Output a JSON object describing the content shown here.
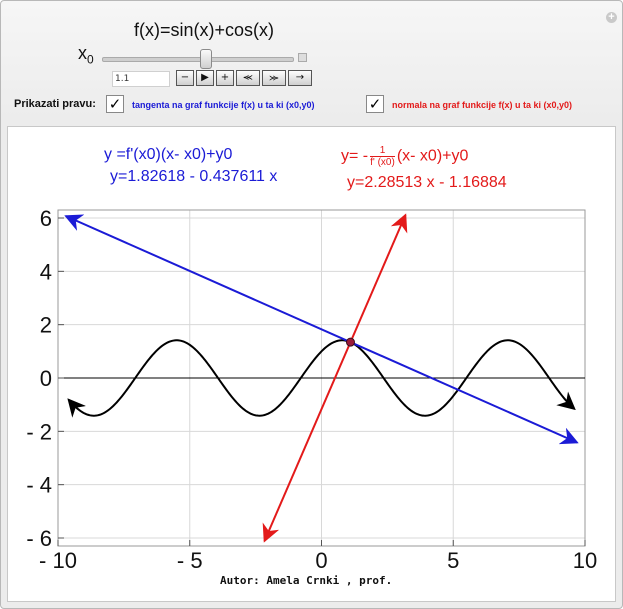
{
  "title": "f(x)=sin(x)+cos(x)",
  "slider": {
    "label": "x",
    "label_sub": "0",
    "value_display": "1.1"
  },
  "animation_controls": [
    "−",
    "▶",
    "+",
    "⪻",
    "⪼",
    "→"
  ],
  "controls": {
    "show_label": "Prikazati pravu:",
    "tangent": {
      "checked": true,
      "label": "tangenta na graf funkcije f(x) u ta  ki (x0,y0)"
    },
    "normal": {
      "checked": true,
      "label": "normala na graf funkcije f(x) u ta  ki (x0,y0)"
    }
  },
  "equations": {
    "tangent_formula": "y =f'(x0)(x- x0)+y0",
    "tangent_result": "y=1.82618 -  0.437611 x",
    "normal_prefix": "y= -",
    "normal_frac_num": "1",
    "normal_frac_den": "f' (x0)",
    "normal_suffix": "(x- x0)+y0",
    "normal_result": "y=2.28513 x -  1.16884"
  },
  "chart_data": {
    "type": "line",
    "function": "sin(x)+cos(x)",
    "x0": 1.1,
    "xlim": [
      -10,
      10
    ],
    "ylim": [
      -6.3,
      6.3
    ],
    "x_ticks": [
      -10,
      -5,
      0,
      5,
      10
    ],
    "y_ticks": [
      6,
      4,
      2,
      0,
      -2,
      -4,
      -6
    ],
    "x_tick_labels": [
      "- 10",
      "- 5",
      "0",
      "5",
      "10"
    ],
    "y_tick_labels": [
      "6",
      "4",
      "2",
      "0",
      "- 2",
      "- 4",
      "- 6"
    ],
    "series": [
      {
        "kind": "function",
        "color": "#000000"
      },
      {
        "kind": "tangent",
        "slope": -0.437611,
        "intercept": 1.82618,
        "color": "#1b1bd6"
      },
      {
        "kind": "normal",
        "slope": 2.28513,
        "intercept": -1.16884,
        "color": "#e31a1a"
      }
    ],
    "grid": true
  },
  "author": "Autor: Amela Crnki , prof."
}
